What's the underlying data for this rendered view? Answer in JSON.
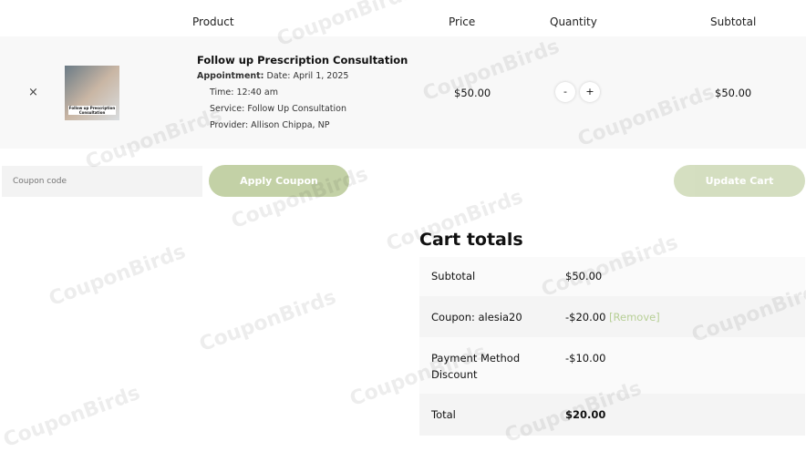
{
  "headers": {
    "product": "Product",
    "price": "Price",
    "quantity": "Quantity",
    "subtotal": "Subtotal"
  },
  "item": {
    "remove": "×",
    "image_caption": "Follow up Prescription Consultation",
    "title": "Follow up Prescription Consultation",
    "appointment_label": "Appointment:",
    "date": "Date: April 1, 2025",
    "time": "Time: 12:40 am",
    "service": "Service: Follow Up Consultation",
    "provider": "Provider: Allison Chippa, NP",
    "price": "$50.00",
    "minus": "-",
    "plus": "+",
    "subtotal": "$50.00"
  },
  "coupon": {
    "placeholder": "Coupon code",
    "apply": "Apply Coupon",
    "update": "Update Cart"
  },
  "totals": {
    "title": "Cart totals",
    "rows": [
      {
        "label": "Subtotal",
        "value": "$50.00"
      },
      {
        "label": "Coupon: alesia20",
        "value": "-$20.00",
        "link": "[Remove]"
      },
      {
        "label": "Payment Method Discount",
        "value": "-$10.00"
      },
      {
        "label": "Total",
        "value": "$20.00"
      }
    ]
  },
  "watermark": "CouponBirds",
  "colors": {
    "accent": "#c3d1a6"
  }
}
